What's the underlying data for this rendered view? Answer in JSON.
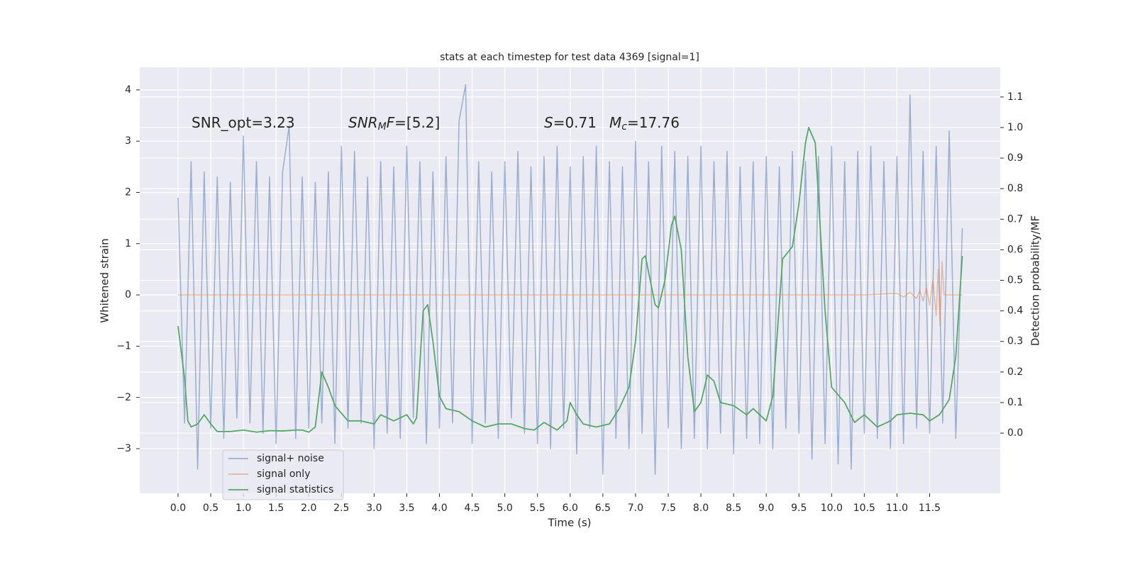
{
  "chart_data": {
    "type": "line",
    "title": "stats at each timestep for test data 4369 [signal=1]",
    "x_label": "Time (s)",
    "y_label": "Whitened strain",
    "y2_label": "Detection probability/MF",
    "xlim": [
      -0.586,
      12.58
    ],
    "ylim": [
      -3.87,
      4.44
    ],
    "y2lim": [
      -0.197,
      1.197
    ],
    "xticks": [
      {
        "value": 0,
        "label": "0.0"
      },
      0.5,
      {
        "value": 1,
        "label": "1.0"
      },
      1.5,
      {
        "value": 2,
        "label": "2.0"
      },
      2.5,
      {
        "value": 3,
        "label": "3.0"
      },
      3.5,
      {
        "value": 4,
        "label": "4.0"
      },
      4.5,
      {
        "value": 5,
        "label": "5.0"
      },
      5.5,
      {
        "value": 6,
        "label": "6.0"
      },
      6.5,
      {
        "value": 7,
        "label": "7.0"
      },
      7.5,
      {
        "value": 8,
        "label": "8.0"
      },
      8.5,
      {
        "value": 9,
        "label": "9.0"
      },
      9.5,
      {
        "value": 10,
        "label": "10.0"
      },
      10.5,
      {
        "value": 11,
        "label": "11.0"
      },
      11.5
    ],
    "yticks": [
      {
        "value": -3,
        "label": "−3"
      },
      {
        "value": -2,
        "label": "−2"
      },
      {
        "value": -1,
        "label": "−1"
      },
      0,
      1,
      2,
      3,
      4
    ],
    "y2ticks": [
      {
        "value": 0,
        "label": "0.0"
      },
      0.1,
      0.2,
      0.3,
      0.4,
      0.5,
      0.6,
      0.7,
      0.8,
      0.9,
      {
        "value": 1,
        "label": "1.0"
      },
      1.1
    ],
    "grid": true,
    "legend": "lower left",
    "background": "#eaeaf2",
    "series": [
      {
        "name": "signal+ noise",
        "color": "#4c72b0",
        "opacity": 0.5,
        "x": [
          0,
          0.1,
          0.2,
          0.3,
          0.4,
          0.5,
          0.6,
          0.7,
          0.8,
          0.9,
          1,
          1.1,
          1.2,
          1.3,
          1.4,
          1.5,
          1.6,
          1.7,
          1.8,
          1.9,
          2,
          2.1,
          2.2,
          2.3,
          2.4,
          2.5,
          2.6,
          2.7,
          2.8,
          2.9,
          3,
          3.1,
          3.2,
          3.3,
          3.4,
          3.5,
          3.6,
          3.7,
          3.8,
          3.9,
          4,
          4.1,
          4.2,
          4.3,
          4.4,
          4.5,
          4.6,
          4.7,
          4.8,
          4.9,
          5,
          5.1,
          5.2,
          5.3,
          5.4,
          5.5,
          5.6,
          5.7,
          5.8,
          5.9,
          6,
          6.1,
          6.2,
          6.3,
          6.4,
          6.5,
          6.6,
          6.7,
          6.8,
          6.9,
          7,
          7.1,
          7.2,
          7.3,
          7.4,
          7.5,
          7.6,
          7.7,
          7.8,
          7.9,
          8,
          8.1,
          8.2,
          8.3,
          8.4,
          8.5,
          8.6,
          8.7,
          8.8,
          8.9,
          9,
          9.1,
          9.2,
          9.3,
          9.4,
          9.5,
          9.6,
          9.7,
          9.8,
          9.9,
          10,
          10.1,
          10.2,
          10.3,
          10.4,
          10.5,
          10.6,
          10.7,
          10.8,
          10.9,
          11,
          11.1,
          11.2,
          11.3,
          11.4,
          11.5,
          11.6,
          11.7,
          11.8,
          11.9,
          12
        ],
        "values": [
          1.9,
          -2.5,
          2.6,
          -3.4,
          2.4,
          -2.6,
          2.3,
          -2.8,
          2.2,
          -2.4,
          3.1,
          -2.5,
          2.6,
          -2.7,
          2.3,
          -2.9,
          2.4,
          3.3,
          -2.8,
          2.3,
          -2.6,
          2.2,
          -2.5,
          2.4,
          -2.9,
          2.9,
          -2.6,
          2.8,
          -2.5,
          2.3,
          -3.0,
          2.6,
          -2.7,
          2.5,
          -2.8,
          2.9,
          -2.4,
          2.6,
          -2.9,
          2.4,
          -2.6,
          2.7,
          -2.5,
          3.4,
          4.1,
          -2.9,
          2.6,
          -2.5,
          2.4,
          -2.8,
          2.6,
          -2.4,
          2.8,
          -2.7,
          2.5,
          -2.9,
          2.7,
          -3.0,
          2.9,
          -2.6,
          2.5,
          -3.1,
          2.7,
          -2.6,
          2.9,
          -3.5,
          2.6,
          -2.8,
          2.5,
          -3.0,
          3.0,
          -2.7,
          2.6,
          -3.5,
          2.9,
          -2.6,
          2.8,
          -3.0,
          2.7,
          -2.8,
          2.9,
          -3.0,
          2.6,
          -2.7,
          2.8,
          -3.1,
          2.5,
          -2.8,
          2.6,
          -2.9,
          2.7,
          -3.0,
          2.5,
          -2.6,
          2.8,
          -2.7,
          2.6,
          -3.2,
          2.7,
          -2.9,
          2.9,
          -3.3,
          2.6,
          -3.4,
          2.8,
          -2.7,
          2.9,
          -2.8,
          2.6,
          -3.0,
          2.7,
          -2.9,
          3.9,
          -2.6,
          2.8,
          -2.7,
          2.9,
          -2.5,
          3.2,
          -2.8,
          1.3
        ]
      },
      {
        "name": "signal only",
        "color": "#dd8452",
        "opacity": 0.5,
        "x": [
          0,
          10.5,
          11,
          11.1,
          11.2,
          11.3,
          11.35,
          11.4,
          11.45,
          11.5,
          11.55,
          11.6,
          11.63,
          11.66,
          11.69,
          11.72,
          12
        ],
        "values": [
          0,
          0,
          0.03,
          -0.04,
          0.05,
          -0.07,
          0.09,
          -0.12,
          0.15,
          -0.2,
          0.3,
          -0.4,
          0.5,
          -0.6,
          0.65,
          0,
          0
        ]
      },
      {
        "name": "signal statistics",
        "color": "#55a868",
        "opacity": 1,
        "axis": "y2",
        "x": [
          0,
          0.1,
          0.15,
          0.2,
          0.3,
          0.4,
          0.5,
          0.6,
          0.8,
          1,
          1.2,
          1.4,
          1.6,
          1.8,
          1.9,
          2,
          2.1,
          2.2,
          2.3,
          2.4,
          2.6,
          2.8,
          3,
          3.1,
          3.3,
          3.5,
          3.6,
          3.65,
          3.75,
          3.82,
          3.9,
          4,
          4.1,
          4.3,
          4.5,
          4.7,
          4.9,
          5.1,
          5.3,
          5.45,
          5.6,
          5.8,
          5.95,
          6,
          6.1,
          6.2,
          6.4,
          6.6,
          6.75,
          6.9,
          7,
          7.1,
          7.15,
          7.3,
          7.35,
          7.45,
          7.55,
          7.6,
          7.7,
          7.8,
          7.9,
          8,
          8.1,
          8.2,
          8.3,
          8.5,
          8.7,
          8.8,
          9,
          9.1,
          9.25,
          9.4,
          9.5,
          9.6,
          9.65,
          9.75,
          9.9,
          10,
          10.2,
          10.35,
          10.5,
          10.7,
          10.9,
          11,
          11.2,
          11.4,
          11.5,
          11.65,
          11.8,
          11.9,
          12
        ],
        "values": [
          0.35,
          0.18,
          0.04,
          0.02,
          0.03,
          0.06,
          0.03,
          0.005,
          0.005,
          0.01,
          0.003,
          0.008,
          0.007,
          0.01,
          0.01,
          0.003,
          0.02,
          0.2,
          0.15,
          0.09,
          0.04,
          0.04,
          0.03,
          0.06,
          0.04,
          0.06,
          0.03,
          0.05,
          0.4,
          0.42,
          0.3,
          0.12,
          0.08,
          0.07,
          0.04,
          0.02,
          0.03,
          0.03,
          0.015,
          0.01,
          0.035,
          0.01,
          0.04,
          0.1,
          0.06,
          0.03,
          0.02,
          0.03,
          0.08,
          0.15,
          0.3,
          0.57,
          0.58,
          0.42,
          0.41,
          0.5,
          0.68,
          0.71,
          0.6,
          0.25,
          0.07,
          0.1,
          0.19,
          0.17,
          0.1,
          0.09,
          0.06,
          0.08,
          0.04,
          0.12,
          0.57,
          0.61,
          0.75,
          0.95,
          1.0,
          0.95,
          0.4,
          0.15,
          0.1,
          0.035,
          0.06,
          0.02,
          0.04,
          0.06,
          0.065,
          0.06,
          0.04,
          0.06,
          0.11,
          0.25,
          0.58
        ]
      }
    ],
    "annotations": [
      [
        {
          "text": "SNR_opt=3.23"
        }
      ],
      [
        {
          "text": "SNR",
          "italic": true
        },
        {
          "text": "M",
          "italic": true,
          "sub": true
        },
        {
          "text": "F",
          "italic": true
        },
        {
          "text": "=[5.2]"
        }
      ],
      [
        {
          "text": "S",
          "italic": true
        },
        {
          "text": "=0.71"
        }
      ],
      [
        {
          "text": "M",
          "italic": true
        },
        {
          "text": "c",
          "italic": true,
          "sub": true
        },
        {
          "text": "=17.76"
        }
      ]
    ]
  }
}
